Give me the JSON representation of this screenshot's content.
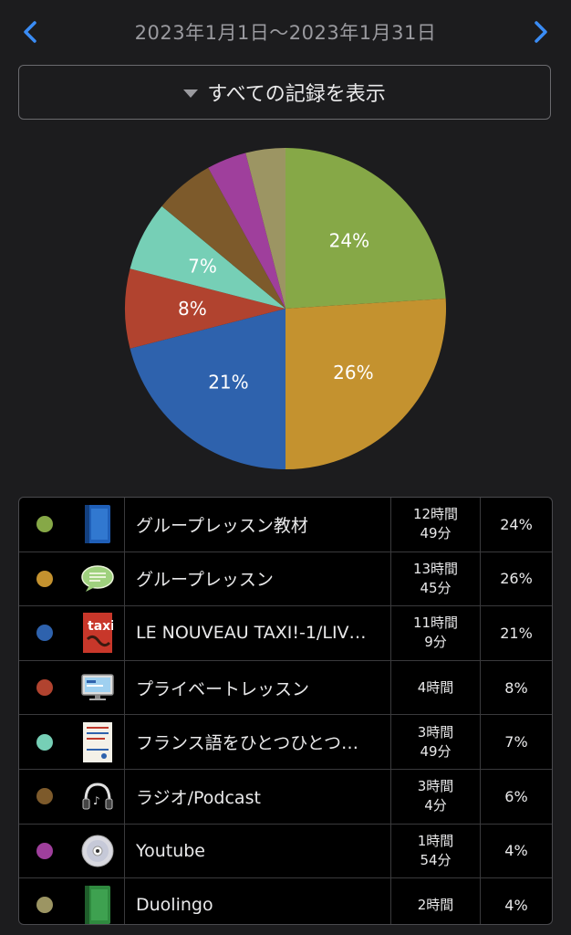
{
  "header": {
    "title": "2023年1月1日〜2023年1月31日",
    "prev_icon": "chevron-left-icon",
    "next_icon": "chevron-right-icon",
    "accent": "#3a8cf5"
  },
  "filter": {
    "label": "すべての記録を表示"
  },
  "chart_data": {
    "type": "pie",
    "title": "",
    "slices": [
      {
        "label": "グループレッスン教材",
        "value": 24,
        "color": "#86a847",
        "text": "24%"
      },
      {
        "label": "グループレッスン",
        "value": 26,
        "color": "#c4922f",
        "text": "26%"
      },
      {
        "label": "LE NOUVEAU TAXI!-1/LIV…",
        "value": 21,
        "color": "#2e62ad",
        "text": "21%"
      },
      {
        "label": "プライベートレッスン",
        "value": 8,
        "color": "#b1432f",
        "text": "8%"
      },
      {
        "label": "フランス語をひとつひとつ…",
        "value": 7,
        "color": "#76cfb6",
        "text": "7%"
      },
      {
        "label": "ラジオ/Podcast",
        "value": 6,
        "color": "#7d5a2b",
        "text": ""
      },
      {
        "label": "Youtube",
        "value": 4,
        "color": "#9f3f9c",
        "text": ""
      },
      {
        "label": "Duolingo",
        "value": 4,
        "color": "#9c9563",
        "text": ""
      }
    ]
  },
  "rows": [
    {
      "name": "グループレッスン教材",
      "time1": "12時間",
      "time2": "49分",
      "pct": "24%",
      "color": "#86a847",
      "icon": "book-blue-icon"
    },
    {
      "name": "グループレッスン",
      "time1": "13時間",
      "time2": "45分",
      "pct": "26%",
      "color": "#c4922f",
      "icon": "speech-bubble-icon"
    },
    {
      "name": "LE NOUVEAU TAXI!-1/LIV…",
      "time1": "11時間",
      "time2": "9分",
      "pct": "21%",
      "color": "#2e62ad",
      "icon": "book-cover-taxi-icon"
    },
    {
      "name": "プライベートレッスン",
      "time1": "4時間",
      "time2": "",
      "pct": "8%",
      "color": "#b1432f",
      "icon": "monitor-icon"
    },
    {
      "name": "フランス語をひとつひとつ…",
      "time1": "3時間",
      "time2": "49分",
      "pct": "7%",
      "color": "#76cfb6",
      "icon": "book-cover-french-icon"
    },
    {
      "name": "ラジオ/Podcast",
      "time1": "3時間",
      "time2": "4分",
      "pct": "6%",
      "color": "#7d5a2b",
      "icon": "headphones-icon"
    },
    {
      "name": "Youtube",
      "time1": "1時間",
      "time2": "54分",
      "pct": "4%",
      "color": "#9f3f9c",
      "icon": "disc-icon"
    },
    {
      "name": "Duolingo",
      "time1": "2時間",
      "time2": "",
      "pct": "4%",
      "color": "#9c9563",
      "icon": "book-green-icon"
    }
  ]
}
